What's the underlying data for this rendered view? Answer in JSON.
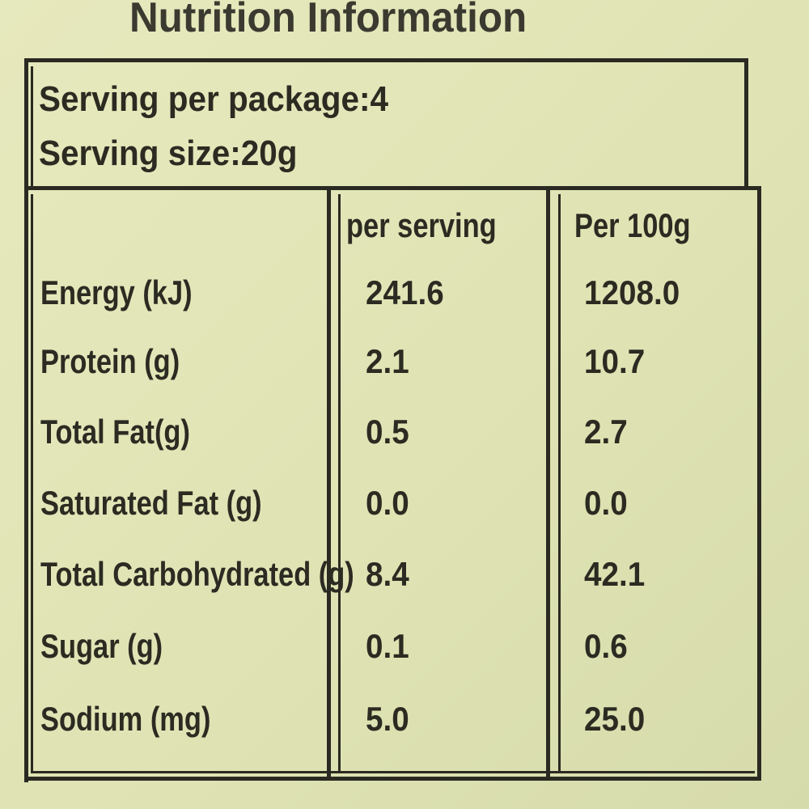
{
  "header": {
    "title": "Nutrition Information",
    "serving_per_package": "Serving per package:4",
    "serving_size": "Serving size:20g"
  },
  "table": {
    "columns": [
      "per serving",
      "Per 100g"
    ],
    "rows": [
      [
        "Energy (kJ)",
        "241.6",
        "1208.0"
      ],
      [
        "Protein (g)",
        "2.1",
        "10.7"
      ],
      [
        "Total Fat(g)",
        "0.5",
        "2.7"
      ],
      [
        "Saturated Fat (g)",
        "0.0",
        "0.0"
      ],
      [
        "Total Carbohydrated (g)",
        "8.4",
        "42.1"
      ],
      [
        "Sugar (g)",
        "0.1",
        "0.6"
      ],
      [
        "Sodium (mg)",
        "5.0",
        "25.0"
      ]
    ]
  }
}
